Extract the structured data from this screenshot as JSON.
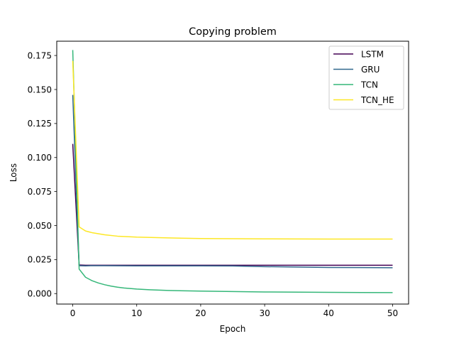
{
  "chart_data": {
    "type": "line",
    "title": "Copying problem",
    "xlabel": "Epoch",
    "ylabel": "Loss",
    "xlim": [
      -2.5,
      52.5
    ],
    "ylim": [
      -0.0077,
      0.1855
    ],
    "xticks": [
      0,
      10,
      20,
      30,
      40,
      50
    ],
    "yticks": [
      0.0,
      0.025,
      0.05,
      0.075,
      0.1,
      0.125,
      0.15,
      0.175
    ],
    "ytick_labels": [
      "0.000",
      "0.025",
      "0.050",
      "0.075",
      "0.100",
      "0.125",
      "0.150",
      "0.175"
    ],
    "grid": false,
    "legend_position": "top-right",
    "series": [
      {
        "name": "LSTM",
        "color": "#440154",
        "x": [
          0,
          1,
          2,
          3,
          5,
          10,
          20,
          30,
          40,
          50
        ],
        "y": [
          0.11,
          0.021,
          0.0208,
          0.0208,
          0.0208,
          0.0208,
          0.0208,
          0.0208,
          0.0208,
          0.0208
        ]
      },
      {
        "name": "GRU",
        "color": "#31688e",
        "x": [
          0,
          1,
          2,
          3,
          5,
          10,
          20,
          25,
          30,
          40,
          50
        ],
        "y": [
          0.146,
          0.0205,
          0.0204,
          0.0205,
          0.0205,
          0.0204,
          0.0204,
          0.0203,
          0.0198,
          0.0192,
          0.019
        ]
      },
      {
        "name": "TCN",
        "color": "#35b779",
        "x": [
          0,
          1,
          2,
          3,
          4,
          5,
          6,
          7,
          8,
          10,
          12,
          15,
          20,
          25,
          30,
          40,
          50
        ],
        "y": [
          0.179,
          0.018,
          0.012,
          0.0095,
          0.0078,
          0.0065,
          0.0055,
          0.0047,
          0.0041,
          0.0033,
          0.0028,
          0.0023,
          0.0018,
          0.0015,
          0.0012,
          0.0009,
          0.0007
        ]
      },
      {
        "name": "TCN_HE",
        "color": "#fde725",
        "x": [
          0,
          1,
          2,
          3,
          4,
          5,
          7,
          10,
          15,
          20,
          30,
          40,
          50
        ],
        "y": [
          0.171,
          0.049,
          0.046,
          0.0448,
          0.044,
          0.0432,
          0.0422,
          0.0415,
          0.0409,
          0.0405,
          0.0402,
          0.0401,
          0.0401
        ]
      }
    ]
  }
}
